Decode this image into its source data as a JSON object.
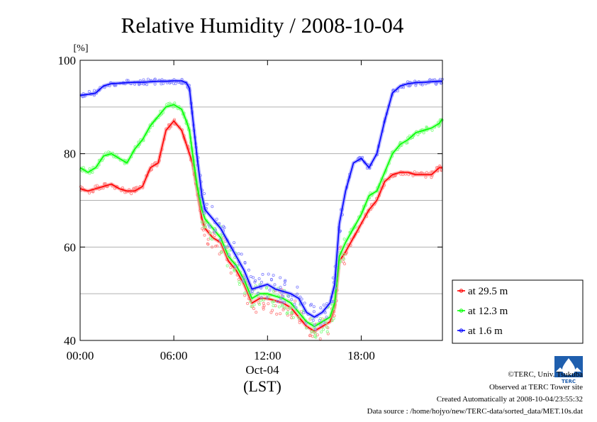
{
  "chart_data": {
    "type": "line",
    "title": "Relative Humidity / 2008-10-04",
    "ylabel": "[%]",
    "xlabel_date": "Oct-04",
    "xlabel_unit": "(LST)",
    "ylim": [
      40,
      100
    ],
    "yticks": [
      "40",
      "60",
      "80",
      "100"
    ],
    "xlim_hours": [
      0,
      23.2
    ],
    "xticks": [
      {
        "hour": 0,
        "label": "00:00"
      },
      {
        "hour": 6,
        "label": "06:00"
      },
      {
        "hour": 12,
        "label": "12:00"
      },
      {
        "hour": 18,
        "label": "18:00"
      }
    ],
    "grid": true,
    "legend_position": "right",
    "series": [
      {
        "name": "at 29.5 m",
        "color": "#ff0000",
        "x": [
          0,
          0.5,
          1,
          1.5,
          2,
          2.5,
          3,
          3.5,
          4,
          4.5,
          5,
          5.5,
          6,
          6.5,
          6.8,
          7,
          7.2,
          7.5,
          7.8,
          8,
          8.5,
          9,
          9.5,
          10,
          10.5,
          11,
          11.5,
          12,
          12.5,
          13,
          13.5,
          14,
          14.5,
          15,
          15.5,
          16,
          16.3,
          16.6,
          17,
          17.5,
          18,
          18.5,
          19,
          19.5,
          20,
          20.5,
          21,
          21.5,
          22,
          22.5,
          23,
          23.2
        ],
        "y": [
          72.5,
          72,
          72.5,
          73,
          73.5,
          72.5,
          72,
          72,
          73,
          77,
          78,
          85,
          87,
          85,
          82,
          80,
          78,
          72,
          66,
          64,
          62,
          61,
          57,
          55,
          52,
          48,
          49,
          49,
          48.5,
          48,
          47,
          45,
          43,
          42,
          43,
          44,
          47,
          57,
          59,
          62,
          65,
          68,
          70,
          74,
          75.5,
          76,
          76,
          75.5,
          75.5,
          75.5,
          77,
          77
        ]
      },
      {
        "name": "at 12.3 m",
        "color": "#00ff00",
        "x": [
          0,
          0.5,
          1,
          1.5,
          2,
          2.5,
          3,
          3.5,
          4,
          4.5,
          5,
          5.5,
          6,
          6.5,
          6.8,
          7,
          7.2,
          7.5,
          7.8,
          8,
          8.5,
          9,
          9.5,
          10,
          10.5,
          11,
          11.5,
          12,
          12.5,
          13,
          13.5,
          14,
          14.5,
          15,
          15.5,
          16,
          16.3,
          16.6,
          17,
          17.5,
          18,
          18.5,
          19,
          19.5,
          20,
          20.5,
          21,
          21.5,
          22,
          22.5,
          23,
          23.2
        ],
        "y": [
          77,
          76,
          77,
          79.5,
          80,
          79,
          78,
          81,
          83,
          86,
          88,
          90,
          90.5,
          89.5,
          87,
          85,
          80,
          73,
          68,
          66,
          64,
          62,
          58,
          56,
          53,
          49,
          50,
          50,
          49.5,
          49,
          48,
          46,
          44,
          43,
          44,
          45,
          48,
          58,
          61,
          64,
          67,
          71,
          72,
          76,
          80,
          82,
          83,
          84.5,
          85,
          85.5,
          86.5,
          87.5
        ]
      },
      {
        "name": "at 1.6 m",
        "color": "#0000ff",
        "x": [
          0,
          0.5,
          1,
          1.5,
          2,
          2.5,
          3,
          3.5,
          4,
          4.5,
          5,
          5.5,
          6,
          6.5,
          6.8,
          7,
          7.2,
          7.5,
          7.8,
          8,
          8.5,
          9,
          9.5,
          10,
          10.5,
          11,
          11.5,
          12,
          12.5,
          13,
          13.5,
          14,
          14.5,
          15,
          15.5,
          16,
          16.3,
          16.6,
          17,
          17.5,
          18,
          18.5,
          19,
          19.5,
          20,
          20.5,
          21,
          21.5,
          22,
          22.5,
          23,
          23.2
        ],
        "y": [
          92.5,
          92.7,
          93,
          94.5,
          95,
          95.1,
          95.2,
          95.3,
          95.3,
          95.4,
          95.5,
          95.5,
          95.6,
          95.6,
          95.2,
          94,
          88,
          79,
          71,
          68,
          66,
          64,
          61,
          58,
          55,
          51,
          51.5,
          52,
          51,
          50.5,
          50,
          49,
          46,
          45,
          46,
          48,
          52,
          65,
          72,
          78,
          79,
          77,
          80,
          87,
          93,
          94.5,
          95,
          95.2,
          95.3,
          95.4,
          95.5,
          95.5
        ]
      }
    ]
  },
  "footer": {
    "copyright": "©TERC, Univ. Tsukuba",
    "observed": "Observed at TERC Tower site",
    "created": "Created Automatically at 2008-10-04/23:55:32",
    "source": "Data source : /home/hojyo/new/TERC-data/sorted_data/MET.10s.dat"
  },
  "logo": {
    "text": "TERC"
  }
}
